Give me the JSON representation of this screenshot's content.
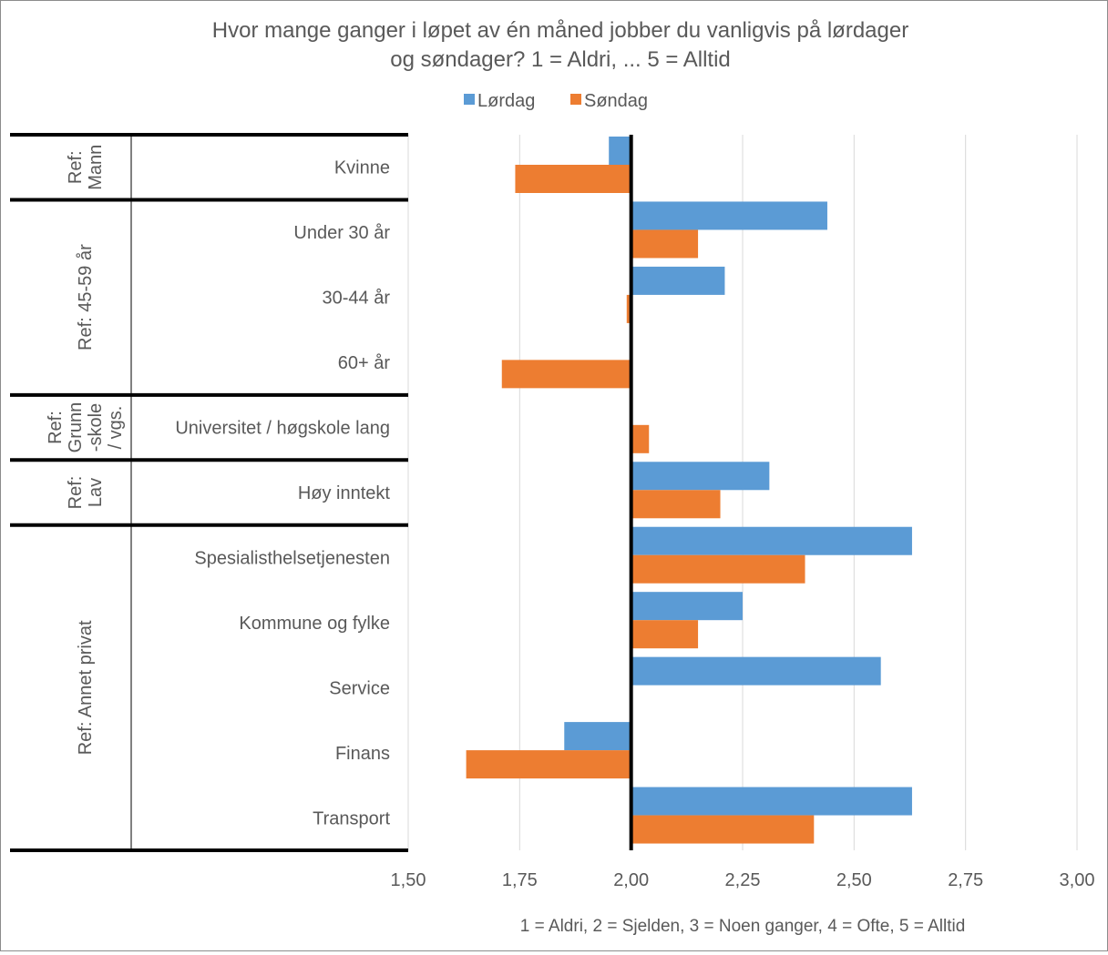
{
  "chart_data": {
    "type": "bar",
    "orientation": "horizontal",
    "title_lines": [
      "Hvor mange ganger i løpet av én måned jobber du vanligvis på lørdager",
      "og søndager? 1 = Aldri, ... 5 = Alltid"
    ],
    "xlabel": "1 = Aldri, 2 = Sjelden, 3 = Noen ganger, 4 = Ofte, 5 = Alltid",
    "xlim": [
      1.5,
      3.0
    ],
    "xticks": [
      "1,50",
      "1,75",
      "2,00",
      "2,25",
      "2,50",
      "2,75",
      "3,00"
    ],
    "xtick_values": [
      1.5,
      1.75,
      2.0,
      2.25,
      2.5,
      2.75,
      3.0
    ],
    "baseline": 2.0,
    "grid": true,
    "legend_position": "top",
    "groups": [
      {
        "label_lines": [
          "Ref:",
          "Mann"
        ],
        "categories": [
          "Kvinne"
        ]
      },
      {
        "label_lines": [
          "Ref: 45-59 år"
        ],
        "categories": [
          "Under 30 år",
          "30-44 år",
          "60+ år"
        ]
      },
      {
        "label_lines": [
          "Ref:",
          "Grunn",
          "-skole",
          "/ vgs."
        ],
        "categories": [
          "Universitet / høgskole lang"
        ]
      },
      {
        "label_lines": [
          "Ref:",
          "Lav"
        ],
        "categories": [
          "Høy inntekt"
        ]
      },
      {
        "label_lines": [
          "Ref: Annet privat"
        ],
        "categories": [
          "Spesialisthelsetjenesten",
          "Kommune og fylke",
          "Service",
          "Finans",
          "Transport"
        ]
      }
    ],
    "categories": [
      "Kvinne",
      "Under 30 år",
      "30-44 år",
      "60+ år",
      "Universitet / høgskole lang",
      "Høy inntekt",
      "Spesialisthelsetjenesten",
      "Kommune og fylke",
      "Service",
      "Finans",
      "Transport"
    ],
    "series": [
      {
        "name": "Lørdag",
        "color": "#5b9bd5",
        "values": [
          1.95,
          2.44,
          2.21,
          2.0,
          2.0,
          2.31,
          2.63,
          2.25,
          2.56,
          1.85,
          2.63
        ]
      },
      {
        "name": "Søndag",
        "color": "#ed7d31",
        "values": [
          1.74,
          2.15,
          1.99,
          1.71,
          2.04,
          2.2,
          2.39,
          2.15,
          2.0,
          1.63,
          2.41
        ]
      }
    ]
  }
}
